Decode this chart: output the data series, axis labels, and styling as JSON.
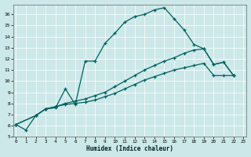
{
  "bg_color": "#cce8e8",
  "line_color": "#006060",
  "xlabel": "Humidex (Indice chaleur)",
  "xlim_min": -0.3,
  "xlim_max": 23.3,
  "ylim_min": 5,
  "ylim_max": 16.9,
  "yticks": [
    5,
    6,
    7,
    8,
    9,
    10,
    11,
    12,
    13,
    14,
    15,
    16
  ],
  "xticks": [
    0,
    1,
    2,
    3,
    4,
    5,
    6,
    7,
    8,
    9,
    10,
    11,
    12,
    13,
    14,
    15,
    16,
    17,
    18,
    19,
    20,
    21,
    22,
    23
  ],
  "line1_x": [
    0,
    1,
    2,
    3,
    4,
    5,
    6,
    7,
    8,
    9,
    10,
    11,
    12,
    13,
    14,
    15,
    16,
    17,
    18,
    19,
    20,
    21,
    22
  ],
  "line1_y": [
    6.1,
    5.6,
    6.9,
    7.5,
    7.6,
    9.3,
    7.9,
    11.8,
    11.8,
    13.4,
    14.3,
    15.3,
    15.8,
    16.0,
    16.4,
    16.6,
    15.6,
    14.6,
    13.3,
    12.9,
    11.5,
    11.7,
    10.5
  ],
  "line2_x": [
    0,
    2,
    3,
    4,
    5,
    6,
    7,
    8,
    9,
    10,
    11,
    12,
    13,
    14,
    15,
    16,
    17,
    18,
    19,
    20,
    21,
    22
  ],
  "line2_y": [
    6.1,
    6.9,
    7.5,
    7.7,
    8.0,
    8.2,
    8.4,
    8.7,
    9.0,
    9.5,
    10.0,
    10.5,
    11.0,
    11.4,
    11.8,
    12.1,
    12.5,
    12.8,
    12.9,
    11.5,
    11.7,
    10.5
  ],
  "line3_x": [
    0,
    2,
    3,
    4,
    5,
    6,
    7,
    8,
    9,
    10,
    11,
    12,
    13,
    14,
    15,
    16,
    17,
    18,
    19,
    20,
    21,
    22
  ],
  "line3_y": [
    6.1,
    6.9,
    7.5,
    7.7,
    7.9,
    8.0,
    8.1,
    8.3,
    8.6,
    8.9,
    9.3,
    9.7,
    10.1,
    10.4,
    10.7,
    11.0,
    11.2,
    11.4,
    11.6,
    10.5,
    10.5,
    10.5
  ]
}
